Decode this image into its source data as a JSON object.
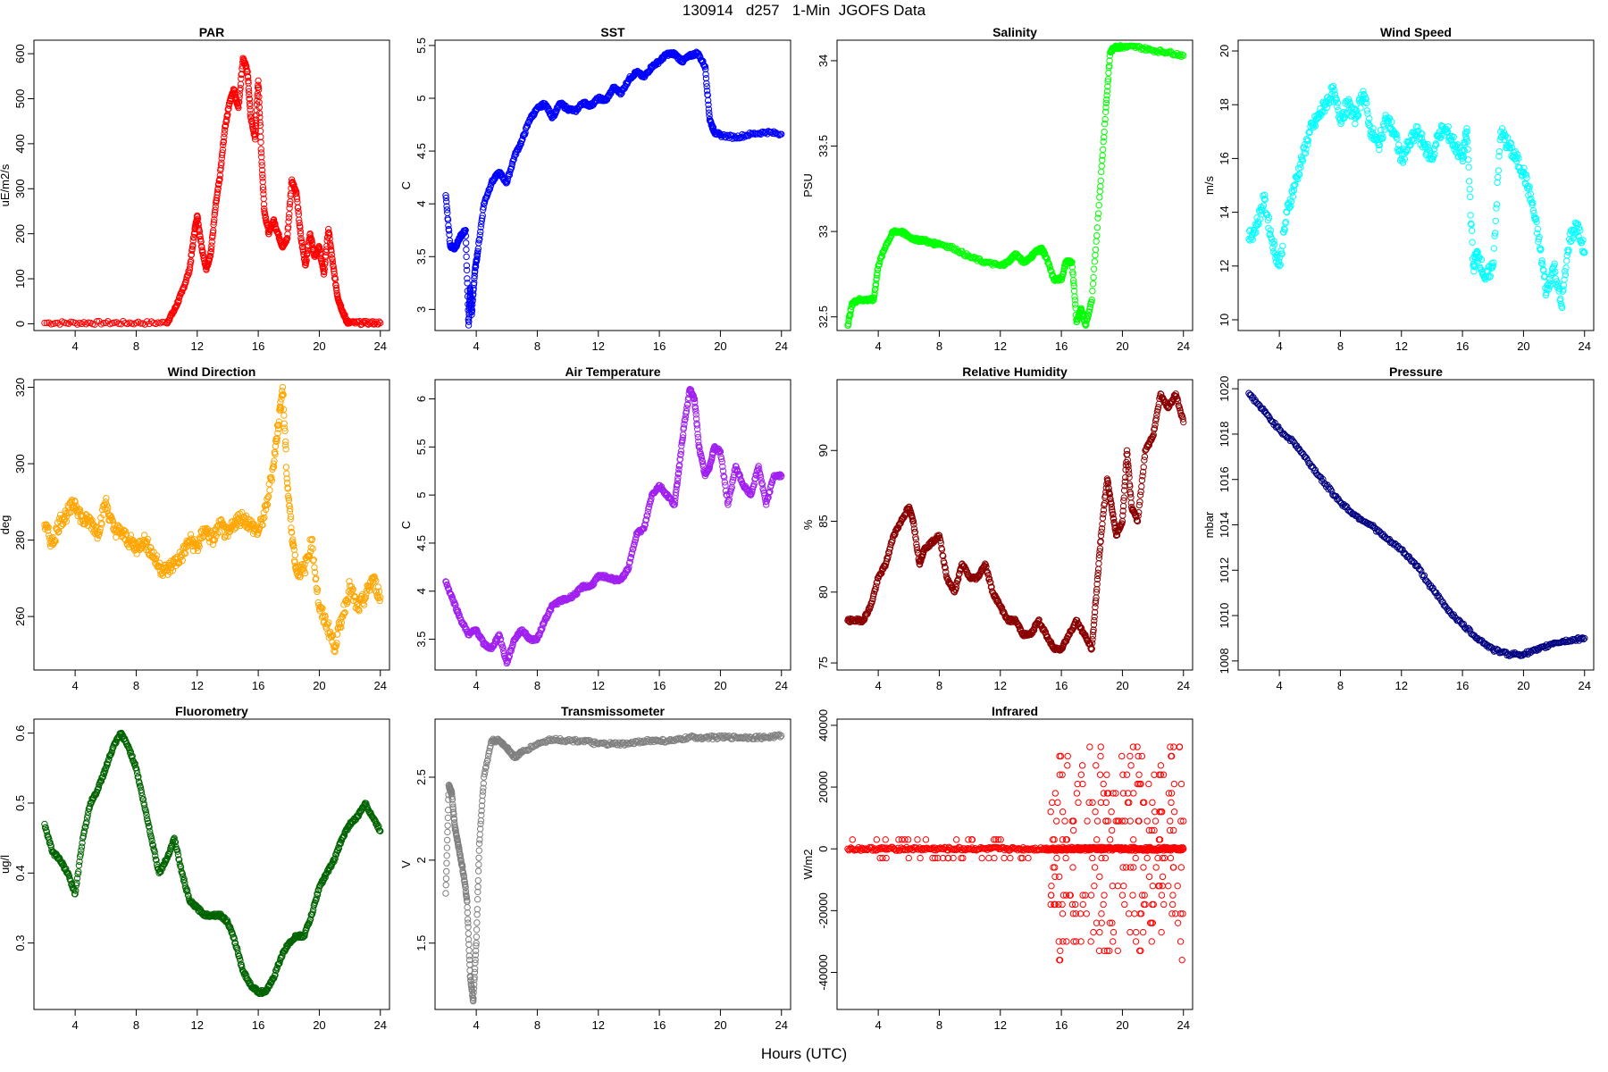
{
  "page": {
    "title": "130914   d257   1-Min  JGOFS Data",
    "x_caption": "Hours (UTC)"
  },
  "chart_data": [
    {
      "type": "scatter",
      "title": "PAR",
      "ylabel": "uE/m2/s",
      "color": "#ff0000",
      "xlim": [
        1.3,
        24.6
      ],
      "ylim": [
        -15,
        630
      ],
      "xticks": [
        4,
        8,
        12,
        16,
        20,
        24
      ],
      "yticks": [
        0,
        100,
        200,
        300,
        400,
        500,
        600
      ],
      "x": [
        2,
        4,
        6,
        8,
        10,
        10.5,
        11,
        11.5,
        11.8,
        12,
        12.3,
        12.6,
        12.9,
        13.2,
        13.5,
        13.8,
        14.1,
        14.4,
        14.7,
        15,
        15.3,
        15.5,
        15.8,
        16,
        16.2,
        16.4,
        16.7,
        17,
        17.3,
        17.6,
        17.9,
        18.2,
        18.5,
        18.8,
        19.1,
        19.4,
        19.7,
        20,
        20.3,
        20.6,
        20.9,
        21.2,
        21.5,
        21.8,
        22,
        23,
        24
      ],
      "y": [
        2,
        2,
        2,
        2,
        2,
        30,
        70,
        120,
        200,
        240,
        170,
        120,
        160,
        260,
        330,
        430,
        490,
        520,
        480,
        590,
        560,
        460,
        410,
        540,
        380,
        250,
        200,
        230,
        200,
        170,
        190,
        320,
        290,
        190,
        130,
        200,
        150,
        170,
        110,
        210,
        130,
        60,
        30,
        5,
        2,
        2,
        2
      ]
    },
    {
      "type": "scatter",
      "title": "SST",
      "ylabel": "C",
      "color": "#0000ff",
      "xlim": [
        1.3,
        24.6
      ],
      "ylim": [
        2.8,
        5.55
      ],
      "xticks": [
        4,
        8,
        12,
        16,
        20,
        24
      ],
      "yticks": [
        3.0,
        3.5,
        4.0,
        4.5,
        5.0,
        5.5
      ],
      "x": [
        2,
        2.3,
        2.6,
        3,
        3.3,
        3.5,
        3.6,
        3.7,
        3.9,
        4.1,
        4.5,
        5,
        5.5,
        6,
        6.5,
        7,
        7.5,
        8,
        8.5,
        9,
        9.5,
        10,
        10.5,
        11,
        11.5,
        12,
        12.5,
        13,
        13.5,
        14,
        14.5,
        15,
        15.5,
        16,
        16.5,
        17,
        17.5,
        18,
        18.5,
        19,
        19.3,
        19.6,
        20,
        21,
        22,
        23,
        24
      ],
      "y": [
        4.08,
        3.6,
        3.58,
        3.7,
        3.75,
        2.85,
        3.2,
        2.95,
        3.35,
        3.55,
        4,
        4.2,
        4.3,
        4.2,
        4.45,
        4.6,
        4.8,
        4.9,
        4.95,
        4.82,
        4.95,
        4.9,
        4.88,
        4.96,
        4.93,
        5.0,
        4.98,
        5.1,
        5.05,
        5.18,
        5.25,
        5.2,
        5.3,
        5.35,
        5.42,
        5.42,
        5.35,
        5.4,
        5.43,
        5.3,
        4.8,
        4.68,
        4.65,
        4.63,
        4.66,
        4.68,
        4.66
      ]
    },
    {
      "type": "scatter",
      "title": "Salinity",
      "ylabel": "PSU",
      "color": "#00ff00",
      "xlim": [
        1.3,
        24.6
      ],
      "ylim": [
        32.42,
        34.12
      ],
      "xticks": [
        4,
        8,
        12,
        16,
        20,
        24
      ],
      "yticks": [
        32.5,
        33.0,
        33.5,
        34.0
      ],
      "x": [
        2,
        2.3,
        2.7,
        3.2,
        3.7,
        4,
        4.5,
        5,
        5.5,
        6,
        6.5,
        7,
        7.5,
        8,
        9,
        10,
        11,
        12,
        12.5,
        13,
        13.5,
        14,
        14.3,
        14.7,
        15,
        15.5,
        16,
        16.3,
        16.7,
        17,
        17.3,
        17.6,
        18,
        18.5,
        18.9,
        19.2,
        19.5,
        19.8,
        20,
        21,
        22,
        23,
        24
      ],
      "y": [
        32.45,
        32.58,
        32.6,
        32.6,
        32.6,
        32.8,
        32.92,
        33.0,
        33.0,
        32.97,
        32.95,
        32.95,
        32.93,
        32.93,
        32.9,
        32.85,
        32.82,
        32.8,
        32.82,
        32.87,
        32.82,
        32.85,
        32.88,
        32.9,
        32.85,
        32.72,
        32.72,
        32.82,
        32.82,
        32.47,
        32.55,
        32.45,
        32.6,
        33.2,
        33.7,
        34.05,
        34.08,
        34.08,
        34.08,
        34.08,
        34.06,
        34.05,
        34.03
      ]
    },
    {
      "type": "scatter",
      "title": "Wind Speed",
      "ylabel": "m/s",
      "color": "#00ffff",
      "xlim": [
        1.3,
        24.6
      ],
      "ylim": [
        9.6,
        20.4
      ],
      "xticks": [
        4,
        8,
        12,
        16,
        20,
        24
      ],
      "yticks": [
        10,
        12,
        14,
        16,
        18,
        20
      ],
      "x": [
        2,
        2.5,
        3,
        3.5,
        4,
        4.5,
        5,
        5.5,
        6,
        6.5,
        7,
        7.5,
        8,
        8.5,
        9,
        9.5,
        10,
        10.5,
        11,
        11.5,
        12,
        12.5,
        13,
        13.5,
        14,
        14.5,
        15,
        15.5,
        16,
        16.3,
        16.7,
        17,
        17.5,
        18,
        18.5,
        19,
        19.5,
        20,
        20.5,
        21,
        21.5,
        22,
        22.5,
        23,
        23.5,
        24
      ],
      "y": [
        13,
        13.5,
        14.5,
        13,
        12,
        14,
        15,
        16,
        17,
        17.5,
        18,
        18.5,
        17.5,
        18,
        17.5,
        18.5,
        17,
        16.5,
        17.5,
        17,
        16,
        16.5,
        17,
        16.5,
        16,
        17,
        17,
        16.5,
        16,
        17,
        12,
        12.5,
        11.5,
        12,
        17,
        16.5,
        16,
        15.5,
        14.5,
        13,
        11,
        12,
        10.5,
        13,
        13.5,
        12.5
      ]
    },
    {
      "type": "scatter",
      "title": "Wind Direction",
      "ylabel": "deg",
      "color": "#ffa500",
      "xlim": [
        1.3,
        24.6
      ],
      "ylim": [
        246,
        322
      ],
      "xticks": [
        4,
        8,
        12,
        16,
        20,
        24
      ],
      "yticks": [
        260,
        280,
        300,
        320
      ],
      "x": [
        2,
        2.5,
        3,
        3.5,
        4,
        4.5,
        5,
        5.5,
        6,
        6.5,
        7,
        7.5,
        8,
        8.5,
        9,
        9.5,
        10,
        10.5,
        11,
        11.5,
        12,
        12.5,
        13,
        13.5,
        14,
        14.5,
        15,
        15.5,
        16,
        16.5,
        17,
        17.3,
        17.6,
        17.9,
        18.2,
        18.5,
        19,
        19.5,
        20,
        20.5,
        21,
        21.5,
        22,
        22.5,
        23,
        23.5,
        24
      ],
      "y": [
        284,
        279,
        285,
        287,
        290,
        285,
        285,
        282,
        290,
        283,
        282,
        280,
        278,
        280,
        277,
        273,
        272,
        274,
        276,
        280,
        278,
        283,
        280,
        284,
        281,
        285,
        286,
        284,
        282,
        288,
        300,
        310,
        320,
        295,
        282,
        272,
        272,
        280,
        262,
        258,
        252,
        260,
        268,
        262,
        265,
        270,
        265
      ]
    },
    {
      "type": "scatter",
      "title": "Air Temperature",
      "ylabel": "C",
      "color": "#a020f0",
      "xlim": [
        1.3,
        24.6
      ],
      "ylim": [
        3.18,
        6.2
      ],
      "xticks": [
        4,
        8,
        12,
        16,
        20,
        24
      ],
      "yticks": [
        3.5,
        4.0,
        4.5,
        5.0,
        5.5,
        6.0
      ],
      "x": [
        2,
        2.5,
        3,
        3.5,
        4,
        4.5,
        5,
        5.5,
        6,
        6.5,
        7,
        7.5,
        8,
        8.5,
        9,
        9.5,
        10,
        10.5,
        11,
        11.5,
        12,
        12.5,
        13,
        13.5,
        14,
        14.5,
        15,
        15.5,
        16,
        16.5,
        17,
        17.3,
        17.6,
        18,
        18.3,
        18.6,
        19,
        19.3,
        19.6,
        20,
        20.5,
        21,
        21.5,
        22,
        22.5,
        23,
        23.5,
        24
      ],
      "y": [
        4.1,
        3.9,
        3.7,
        3.55,
        3.6,
        3.45,
        3.4,
        3.55,
        3.25,
        3.5,
        3.6,
        3.5,
        3.5,
        3.7,
        3.85,
        3.9,
        3.92,
        3.97,
        4.05,
        4.05,
        4.15,
        4.15,
        4.12,
        4.12,
        4.25,
        4.6,
        4.65,
        5.0,
        5.1,
        5.0,
        4.9,
        5.3,
        5.7,
        6.1,
        6.0,
        5.5,
        5.2,
        5.3,
        5.5,
        5.45,
        4.9,
        5.3,
        5.1,
        5.0,
        5.3,
        4.9,
        5.2,
        5.2
      ]
    },
    {
      "type": "scatter",
      "title": "Relative Humidity",
      "ylabel": "%",
      "color": "#8b0000",
      "xlim": [
        1.3,
        24.6
      ],
      "ylim": [
        74.5,
        95
      ],
      "xticks": [
        4,
        8,
        12,
        16,
        20,
        24
      ],
      "yticks": [
        75,
        80,
        85,
        90
      ],
      "x": [
        2,
        2.5,
        3,
        3.5,
        4,
        4.5,
        5,
        5.5,
        6,
        6.3,
        6.7,
        7,
        7.5,
        8,
        8.5,
        9,
        9.5,
        10,
        10.5,
        11,
        11.5,
        12,
        12.5,
        13,
        13.5,
        14,
        14.5,
        15,
        15.5,
        16,
        16.5,
        17,
        17.5,
        18,
        18.3,
        18.6,
        19,
        19.3,
        19.6,
        20,
        20.3,
        20.6,
        21,
        21.5,
        22,
        22.5,
        23,
        23.5,
        24
      ],
      "y": [
        78,
        78,
        78,
        79,
        81,
        82,
        84,
        85,
        86,
        85,
        82,
        83,
        83.5,
        84,
        81,
        80,
        82,
        81,
        81,
        82,
        80,
        79,
        78,
        78,
        77,
        77,
        78,
        77,
        76,
        76,
        77,
        78,
        77,
        76,
        80,
        84,
        88,
        86,
        84,
        85,
        90,
        86,
        85,
        90,
        91,
        94,
        93,
        94,
        92
      ]
    },
    {
      "type": "scatter",
      "title": "Pressure",
      "ylabel": "mbar",
      "color": "#000080",
      "xlim": [
        1.3,
        24.6
      ],
      "ylim": [
        1007.6,
        1020.4
      ],
      "xticks": [
        4,
        8,
        12,
        16,
        20,
        24
      ],
      "yticks": [
        1008,
        1010,
        1012,
        1014,
        1016,
        1018,
        1020
      ],
      "x": [
        2,
        3,
        4,
        5,
        6,
        7,
        8,
        9,
        10,
        11,
        12,
        13,
        14,
        15,
        16,
        17,
        18,
        19,
        20,
        21,
        22,
        23,
        24
      ],
      "y": [
        1019.8,
        1019,
        1018.2,
        1017.6,
        1016.7,
        1015.8,
        1015,
        1014.4,
        1014,
        1013.4,
        1012.9,
        1012.2,
        1011.2,
        1010.3,
        1009.6,
        1009,
        1008.5,
        1008.3,
        1008.3,
        1008.5,
        1008.8,
        1008.9,
        1009
      ]
    },
    {
      "type": "scatter",
      "title": "Fluorometry",
      "ylabel": "ug/l",
      "color": "#006400",
      "xlim": [
        1.3,
        24.6
      ],
      "ylim": [
        0.205,
        0.62
      ],
      "xticks": [
        4,
        8,
        12,
        16,
        20,
        24
      ],
      "yticks": [
        0.3,
        0.4,
        0.5,
        0.6
      ],
      "x": [
        2,
        2.5,
        3,
        3.5,
        4,
        4.5,
        5,
        5.5,
        6,
        6.5,
        7,
        7.5,
        8,
        8.5,
        9,
        9.5,
        10,
        10.5,
        11,
        11.5,
        12,
        12.5,
        13,
        13.5,
        14,
        14.5,
        15,
        15.5,
        16,
        16.5,
        17,
        17.5,
        18,
        18.5,
        19,
        19.5,
        20,
        20.5,
        21,
        21.5,
        22,
        22.5,
        23,
        23.5,
        24
      ],
      "y": [
        0.47,
        0.43,
        0.42,
        0.4,
        0.37,
        0.45,
        0.5,
        0.52,
        0.55,
        0.58,
        0.6,
        0.58,
        0.55,
        0.5,
        0.45,
        0.4,
        0.42,
        0.45,
        0.4,
        0.36,
        0.35,
        0.34,
        0.34,
        0.34,
        0.33,
        0.3,
        0.26,
        0.24,
        0.23,
        0.23,
        0.25,
        0.28,
        0.3,
        0.31,
        0.31,
        0.34,
        0.38,
        0.4,
        0.42,
        0.45,
        0.47,
        0.48,
        0.5,
        0.48,
        0.46
      ]
    },
    {
      "type": "scatter",
      "title": "Transmissometer",
      "ylabel": "V",
      "color": "#808080",
      "xlim": [
        1.3,
        24.6
      ],
      "ylim": [
        1.1,
        2.85
      ],
      "xticks": [
        4,
        8,
        12,
        16,
        20,
        24
      ],
      "yticks": [
        1.5,
        2.0,
        2.5
      ],
      "x": [
        2,
        2.2,
        2.4,
        2.6,
        2.8,
        3,
        3.2,
        3.4,
        3.6,
        3.8,
        4,
        4.2,
        4.5,
        5,
        5.5,
        6,
        6.5,
        7,
        8,
        9,
        10,
        11,
        12,
        13,
        14,
        15,
        16,
        17,
        18,
        19,
        20,
        21,
        22,
        23,
        24
      ],
      "y": [
        1.8,
        2.45,
        2.4,
        2.2,
        2.1,
        2.0,
        1.9,
        1.75,
        1.3,
        1.15,
        1.5,
        2.1,
        2.5,
        2.72,
        2.72,
        2.68,
        2.62,
        2.65,
        2.7,
        2.73,
        2.72,
        2.72,
        2.7,
        2.7,
        2.7,
        2.72,
        2.72,
        2.72,
        2.74,
        2.74,
        2.74,
        2.74,
        2.74,
        2.74,
        2.75
      ]
    },
    {
      "type": "scatter",
      "title": "Infrared",
      "ylabel": "W/m2",
      "color": "#ff0000",
      "xlim": [
        1.3,
        24.6
      ],
      "ylim": [
        -52000,
        42000
      ],
      "xticks": [
        4,
        8,
        12,
        16,
        20,
        24
      ],
      "yticks": [
        -40000,
        -20000,
        0,
        20000,
        40000
      ],
      "x": [
        2,
        3,
        4,
        5,
        6,
        7,
        8,
        9,
        10,
        11,
        12,
        13,
        14,
        15,
        15.5,
        16,
        16.5,
        17,
        17.5,
        18,
        18.5,
        19,
        19.5,
        20,
        20.5,
        21,
        21.5,
        22,
        22.5,
        23,
        23.5,
        24
      ],
      "y": [
        0,
        0,
        0,
        0,
        0,
        0,
        0,
        0,
        0,
        0,
        0,
        0,
        0,
        0,
        0,
        0,
        0,
        0,
        0,
        0,
        0,
        0,
        0,
        0,
        0,
        0,
        0,
        0,
        0,
        0,
        0,
        0
      ]
    },
    {
      "type": "scatter",
      "title": "",
      "ylabel": "",
      "color": "#ff0000",
      "xlim": [
        0,
        1
      ],
      "ylim": [
        0,
        1
      ],
      "xticks": [],
      "yticks": [],
      "x": [],
      "y": [],
      "hidden": true
    }
  ]
}
